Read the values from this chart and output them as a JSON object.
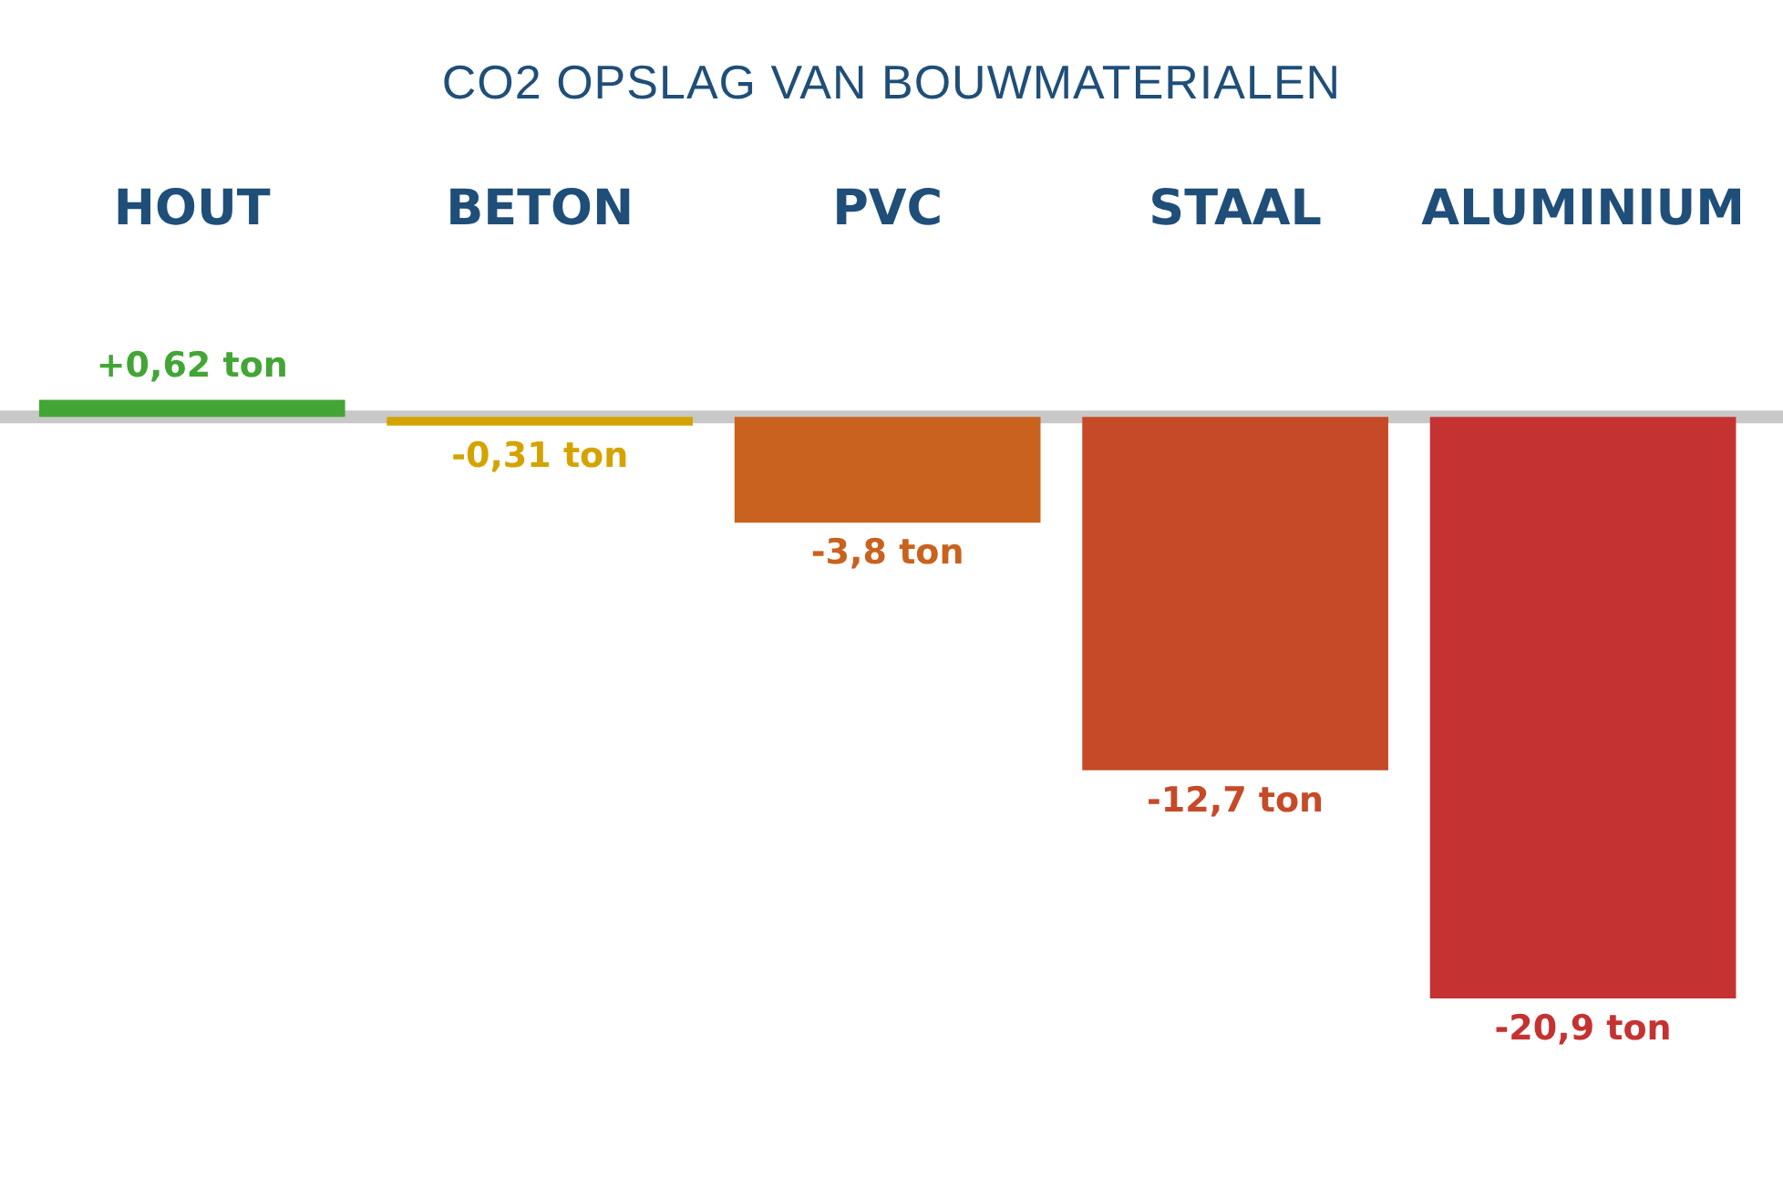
{
  "chart_data": {
    "type": "bar",
    "title": "CO2 OPSLAG VAN BOUWMATERIALEN",
    "categories": [
      "HOUT",
      "BETON",
      "PVC",
      "STAAL",
      "ALUMINIUM"
    ],
    "values": [
      0.62,
      -0.31,
      -3.8,
      -12.7,
      -20.9
    ],
    "colors": [
      "#43a535",
      "#d4a300",
      "#c9621e",
      "#c64a28",
      "#c53232"
    ],
    "value_labels": [
      "+0,62 ton",
      "-0,31 ton",
      "-3,8 ton",
      "-12,7 ton",
      "-20,9 ton"
    ],
    "ref_lines": [
      {
        "axis": "y",
        "value": 0,
        "color": "#c8c8c8"
      }
    ],
    "grid": false,
    "legend": false
  }
}
